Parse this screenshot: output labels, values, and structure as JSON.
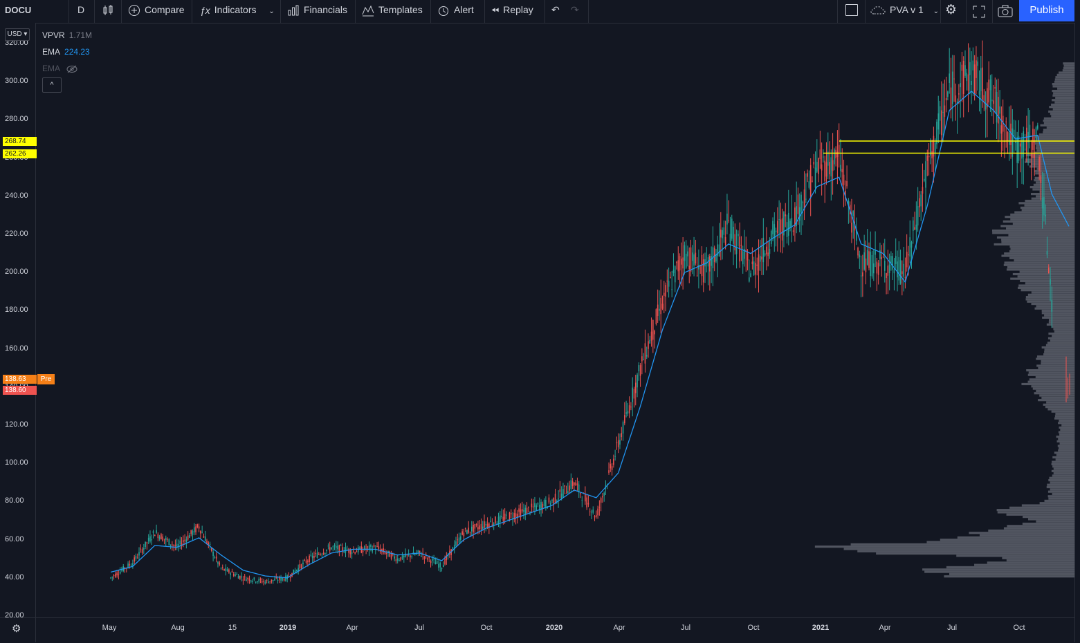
{
  "toolbar": {
    "symbol": "DOCU",
    "interval": "D",
    "compare_label": "Compare",
    "indicators_label": "Indicators",
    "financials_label": "Financials",
    "templates_label": "Templates",
    "alert_label": "Alert",
    "replay_label": "Replay",
    "layout_name": "PVA v 1",
    "publish_label": "Publish"
  },
  "legend": {
    "vpvr_name": "VPVR",
    "vpvr_value": "1.71M",
    "ema1_name": "EMA",
    "ema1_value": "224.23",
    "ema2_name": "EMA",
    "collapse_glyph": "^"
  },
  "currency_label": "USD",
  "price_badges": {
    "level_high": "268.74",
    "level_low": "262.26",
    "pre_price": "138.63",
    "pre_label": "Pre",
    "last_price": "138.60"
  },
  "colors": {
    "background": "#131722",
    "up_candle": "#26a69a",
    "down_candle": "#ef5350",
    "ema_line": "#2196f3",
    "level_line": "#ffff00",
    "volume_profile": "#5d606b",
    "pre_badge": "#f57f17",
    "last_badge": "#ef5350",
    "publish_button": "#2962ff"
  },
  "chart_data": {
    "type": "candlestick",
    "title": "DOCU",
    "interval": "D",
    "y_ticks": [
      "20.00",
      "40.00",
      "60.00",
      "80.00",
      "100.00",
      "120.00",
      "140.00",
      "160.00",
      "180.00",
      "200.00",
      "220.00",
      "240.00",
      "260.00",
      "280.00",
      "300.00",
      "320.00"
    ],
    "ylim": [
      20,
      320
    ],
    "x_ticks": [
      "May",
      "Aug",
      "15",
      "2019",
      "Apr",
      "Jul",
      "Oct",
      "2020",
      "Apr",
      "Jul",
      "Oct",
      "2021",
      "Apr",
      "Jul",
      "Oct"
    ],
    "series_close_approx": {
      "x": [
        "2018-05",
        "2018-06",
        "2018-07",
        "2018-08",
        "2018-09",
        "2018-10",
        "2018-11",
        "2018-12",
        "2019-01",
        "2019-02",
        "2019-03",
        "2019-04",
        "2019-05",
        "2019-06",
        "2019-07",
        "2019-08",
        "2019-09",
        "2019-10",
        "2019-11",
        "2019-12",
        "2020-01",
        "2020-02",
        "2020-03",
        "2020-04",
        "2020-05",
        "2020-06",
        "2020-07",
        "2020-08",
        "2020-09",
        "2020-10",
        "2020-11",
        "2020-12",
        "2021-01",
        "2021-02",
        "2021-03",
        "2021-04",
        "2021-05",
        "2021-06",
        "2021-07",
        "2021-08",
        "2021-09",
        "2021-10",
        "2021-11",
        "2021-12"
      ],
      "values": [
        40,
        48,
        64,
        56,
        67,
        45,
        40,
        38,
        40,
        50,
        56,
        54,
        56,
        50,
        53,
        46,
        64,
        68,
        72,
        76,
        80,
        90,
        72,
        110,
        150,
        185,
        210,
        200,
        225,
        200,
        220,
        230,
        255,
        260,
        205,
        205,
        200,
        255,
        295,
        305,
        290,
        265,
        270,
        138
      ]
    },
    "ema_approx": {
      "x": [
        "2018-05",
        "2018-06",
        "2018-07",
        "2018-08",
        "2018-09",
        "2018-10",
        "2018-11",
        "2018-12",
        "2019-01",
        "2019-02",
        "2019-03",
        "2019-04",
        "2019-05",
        "2019-06",
        "2019-07",
        "2019-08",
        "2019-09",
        "2019-10",
        "2019-11",
        "2019-12",
        "2020-01",
        "2020-02",
        "2020-03",
        "2020-04",
        "2020-05",
        "2020-06",
        "2020-07",
        "2020-08",
        "2020-09",
        "2020-10",
        "2020-11",
        "2020-12",
        "2021-01",
        "2021-02",
        "2021-03",
        "2021-04",
        "2021-05",
        "2021-06",
        "2021-07",
        "2021-08",
        "2021-09",
        "2021-10",
        "2021-11",
        "2021-12"
      ],
      "values": [
        43,
        46,
        57,
        56,
        61,
        52,
        44,
        41,
        40,
        47,
        53,
        55,
        55,
        52,
        53,
        49,
        60,
        66,
        70,
        74,
        78,
        86,
        82,
        95,
        130,
        170,
        200,
        205,
        215,
        210,
        218,
        225,
        245,
        250,
        215,
        210,
        195,
        235,
        285,
        295,
        285,
        270,
        272,
        224
      ]
    },
    "pre_market": {
      "price": 138.63
    },
    "last": {
      "price": 138.6
    },
    "horizontal_levels": [
      268.74,
      262.26
    ],
    "volume_profile": "VPVR"
  }
}
